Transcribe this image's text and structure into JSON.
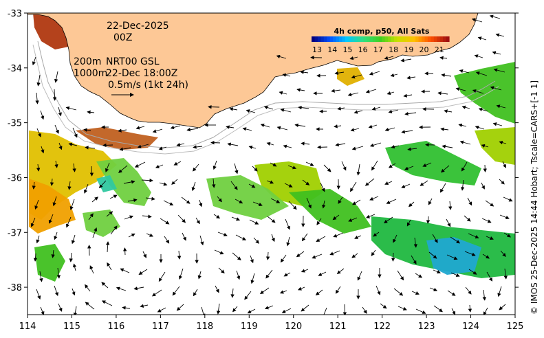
{
  "map": {
    "x_ticks": [
      "114",
      "115",
      "116",
      "117",
      "118",
      "119",
      "120",
      "121",
      "122",
      "123",
      "124",
      "125"
    ],
    "y_ticks": [
      "-33",
      "-34",
      "-35",
      "-36",
      "-37",
      "-38"
    ],
    "lon_range": [
      114,
      125
    ],
    "lat_range": [
      -38.5,
      -33
    ],
    "colors": {
      "land": "#fdc896",
      "ocean": "#ffffff",
      "isobath": "#a8a8a8",
      "arrow": "#000000"
    }
  },
  "annotations": {
    "date": "22-Dec-2025",
    "time": "00Z",
    "depth_200": "200m",
    "depth_1000": "1000m",
    "product": "NRT00 GSL",
    "product_time": "22-Dec 18:00Z",
    "scale_label": "0.5m/s (1kt 24h)"
  },
  "colorbar": {
    "title": "4h comp, p50, All Sats",
    "ticks": [
      "13",
      "14",
      "15",
      "16",
      "17",
      "18",
      "19",
      "20",
      "21"
    ],
    "range": [
      13,
      22
    ],
    "colors": [
      "#000080",
      "#0050ff",
      "#00c8ff",
      "#30e080",
      "#40d020",
      "#c8e000",
      "#ffc000",
      "#ff5000",
      "#a01010"
    ]
  },
  "credit": "© IMOS 25-Dec-2025 14:44 Hobart; Tscale=CARS+[-1 1]"
}
